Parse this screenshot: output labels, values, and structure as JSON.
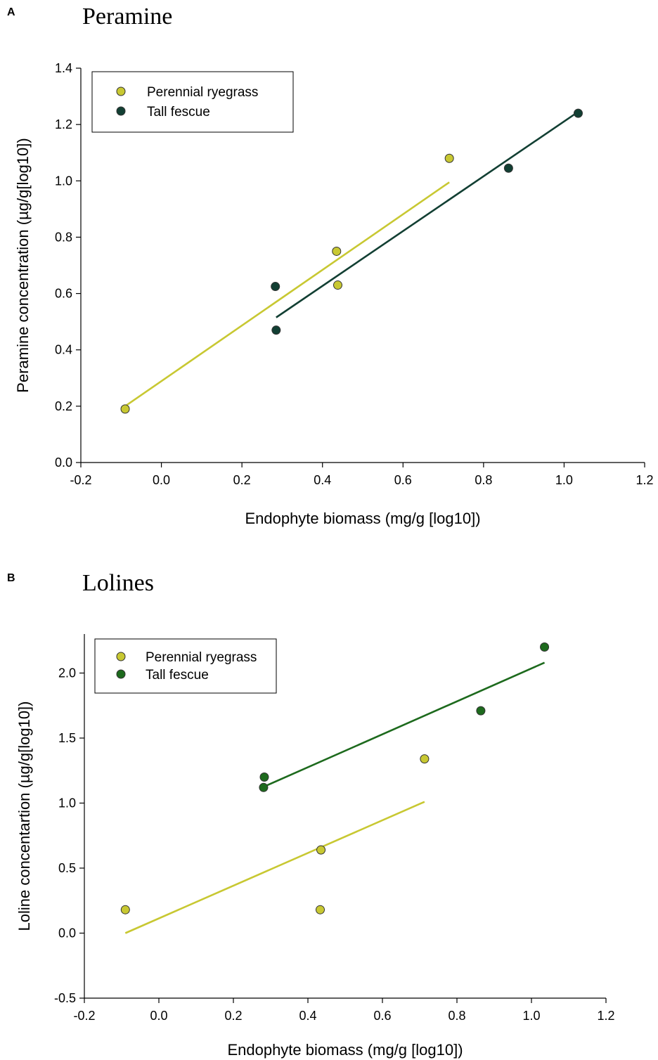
{
  "chart_data": [
    {
      "type": "scatter",
      "panel": "A",
      "title": "Peramine",
      "xlabel": "Endophyte biomass (mg/g [log10])",
      "ylabel": "Peramine concentration (µg/g[log10])",
      "xlim": [
        -0.2,
        1.2
      ],
      "ylim": [
        0.0,
        1.4
      ],
      "xticks": [
        "-0.2",
        "0.0",
        "0.2",
        "0.4",
        "0.6",
        "0.8",
        "1.0",
        "1.2"
      ],
      "yticks": [
        "0.0",
        "0.2",
        "0.4",
        "0.6",
        "0.8",
        "1.0",
        "1.2",
        "1.4"
      ],
      "grid": false,
      "legend": "top-left",
      "series": [
        {
          "name": "Perennial ryegrass",
          "color": "#c8c832",
          "points": [
            [
              -0.09,
              0.19
            ],
            [
              0.435,
              0.75
            ],
            [
              0.438,
              0.63
            ],
            [
              0.715,
              1.08
            ]
          ],
          "fit": [
            [
              -0.09,
              0.2
            ],
            [
              0.715,
              0.995
            ]
          ]
        },
        {
          "name": "Tall fescue",
          "color": "#123f33",
          "points": [
            [
              0.283,
              0.625
            ],
            [
              0.285,
              0.47
            ],
            [
              0.862,
              1.045
            ],
            [
              1.035,
              1.24
            ]
          ],
          "fit": [
            [
              0.285,
              0.515
            ],
            [
              1.035,
              1.245
            ]
          ]
        }
      ]
    },
    {
      "type": "scatter",
      "panel": "B",
      "title": "Lolines",
      "xlabel": "Endophyte biomass (mg/g [log10])",
      "ylabel": "Loline concentartion (µg/g[log10])",
      "xlim": [
        -0.2,
        1.2
      ],
      "ylim": [
        -0.5,
        2.3
      ],
      "xticks": [
        "-0.2",
        "0.0",
        "0.2",
        "0.4",
        "0.6",
        "0.8",
        "1.0",
        "1.2"
      ],
      "yticks": [
        "-0.5",
        "0.0",
        "0.5",
        "1.0",
        "1.5",
        "2.0"
      ],
      "grid": false,
      "legend": "top-left",
      "series": [
        {
          "name": "Perennial ryegrass",
          "color": "#c8c832",
          "points": [
            [
              -0.09,
              0.18
            ],
            [
              0.435,
              0.64
            ],
            [
              0.433,
              0.18
            ],
            [
              0.713,
              1.34
            ]
          ],
          "fit": [
            [
              -0.09,
              0.0
            ],
            [
              0.713,
              1.01
            ]
          ]
        },
        {
          "name": "Tall fescue",
          "color": "#1d6a1d",
          "points": [
            [
              0.283,
              1.2
            ],
            [
              0.281,
              1.12
            ],
            [
              0.864,
              1.71
            ],
            [
              1.035,
              2.2
            ]
          ],
          "fit": [
            [
              0.285,
              1.13
            ],
            [
              1.035,
              2.08
            ]
          ]
        }
      ]
    }
  ]
}
